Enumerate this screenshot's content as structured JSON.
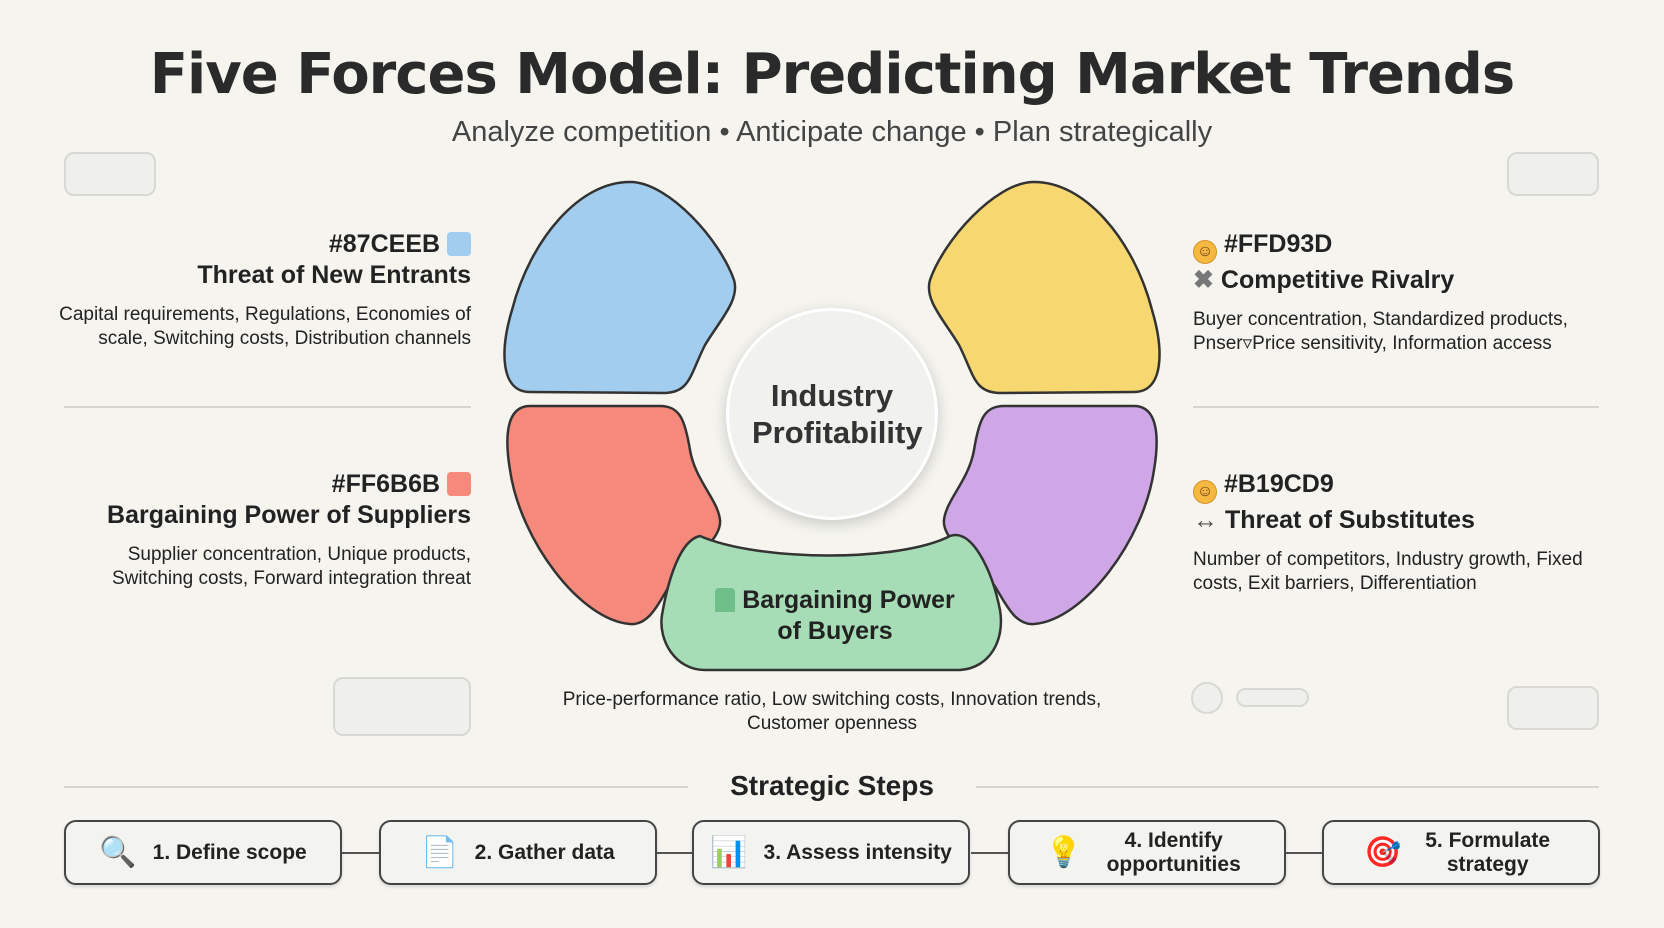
{
  "title": "Five Forces Model: Predicting Market Trends",
  "subtitle": "Analyze competition • Anticipate change • Plan strategically",
  "center": "Industry Profitability",
  "forces": [
    {
      "hex": "#87CEEB",
      "title": "Threat of New Entrants",
      "desc": "Capital requirements, Regulations, Economies of scale, Switching costs, Distribution channels",
      "color": "#a3cdee",
      "icon": "chair-icon"
    },
    {
      "hex": "#FFD93D",
      "title": "Competitive Rivalry",
      "desc": "Buyer concentration, Standardized products, Pnser▿Price sensitivity, Information access",
      "color": "#f6d770",
      "icon": "cross-icon"
    },
    {
      "hex": "#FF6B6B",
      "title": "Bargaining Power of Suppliers",
      "desc": "Supplier concentration, Unique products, Switching costs, Forward integration threat",
      "color": "#f4897c",
      "icon": "red-chair-icon"
    },
    {
      "hex": "#B19CD9",
      "title": "Threat of Substitutes",
      "desc": "Number of competitors, Industry growth, Fixed costs, Exit barriers, Differentiation",
      "color": "#cfa7e6",
      "icon": "swap-arrows-icon"
    },
    {
      "title": "Bargaining Power of Buyers",
      "desc": "Price-performance ratio, Low switching costs, Innovation trends, Customer openness",
      "color": "#a6dcb6",
      "icon": "green-chair-icon"
    }
  ],
  "icons": {
    "smile": "☺",
    "cross": "✖",
    "swap": "↔"
  },
  "steps_title": "Strategic Steps",
  "steps": [
    {
      "label": "1. Define scope",
      "icon": "🔍"
    },
    {
      "label": "2. Gather data",
      "icon": "📄"
    },
    {
      "label": "3. Assess intensity",
      "icon": "📊"
    },
    {
      "label": "4. Identify opportunities",
      "icon": "💡"
    },
    {
      "label": "5. Formulate strategy",
      "icon": "🎯"
    }
  ]
}
